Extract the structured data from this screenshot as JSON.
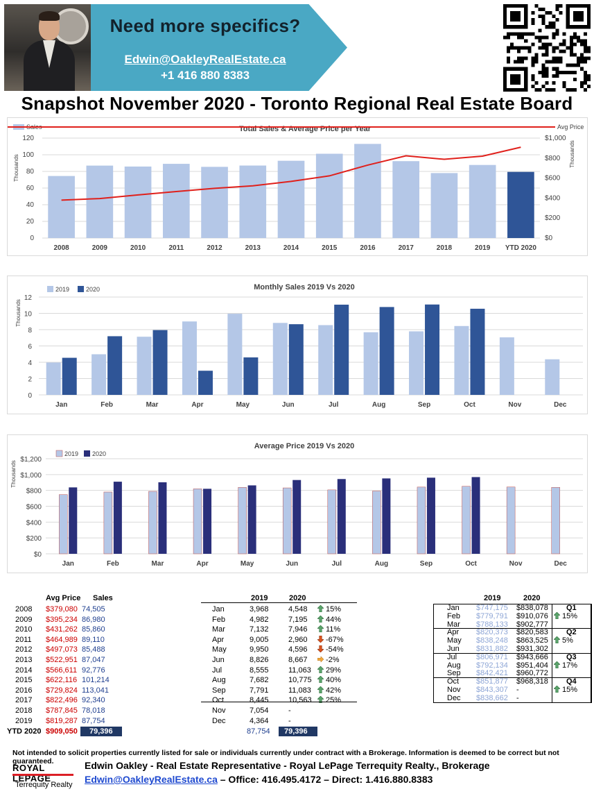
{
  "banner": {
    "headline": "Need more specifics?",
    "email": "Edwin@OakleyRealEstate.ca",
    "phone": "+1 416 880 8383"
  },
  "title": "Snapshot November 2020 - Toronto Regional Real Estate Board",
  "colors": {
    "light_bar": "#b4c7e7",
    "dark_bar": "#2f5597",
    "price_line": "#e0201b",
    "price2020_bar": "#2a2f7a",
    "price2019_bar": "#b4c7e7",
    "red_text": "#cc0000",
    "blue_text": "#1f3f8f"
  },
  "chart_data": [
    {
      "type": "bar+line",
      "title": "Total Sales & Average Price per Year",
      "categories": [
        "2008",
        "2009",
        "2010",
        "2011",
        "2012",
        "2013",
        "2014",
        "2015",
        "2016",
        "2017",
        "2018",
        "2019",
        "YTD 2020"
      ],
      "series": [
        {
          "name": "Sales",
          "axis": "left",
          "values": [
            74.505,
            86.98,
            85.86,
            89.11,
            85.488,
            87.047,
            92.776,
            101.214,
            113.041,
            92.34,
            78.018,
            87.754,
            79.396
          ]
        },
        {
          "name": "Avg Price",
          "axis": "right",
          "values": [
            379.08,
            395.234,
            431.262,
            464.989,
            497.073,
            522.951,
            566.611,
            622.116,
            729.824,
            822.496,
            787.845,
            819.287,
            909.05
          ]
        }
      ],
      "left_axis": {
        "label": "Thousands",
        "ticks": [
          "0",
          "20",
          "40",
          "60",
          "80",
          "100",
          "120"
        ],
        "ylim": [
          0,
          120
        ]
      },
      "right_axis": {
        "label": "Thousands",
        "ticks": [
          "$0",
          "$200",
          "$400",
          "$600",
          "$800",
          "$1,000"
        ],
        "ylim": [
          0,
          1000
        ]
      },
      "legend_left": "Sales",
      "legend_right": "Avg Price"
    },
    {
      "type": "bar",
      "title": "Monthly Sales 2019 Vs 2020",
      "categories": [
        "Jan",
        "Feb",
        "Mar",
        "Apr",
        "May",
        "Jun",
        "Jul",
        "Aug",
        "Sep",
        "Oct",
        "Nov",
        "Dec"
      ],
      "series": [
        {
          "name": "2019",
          "values": [
            3.968,
            4.982,
            7.132,
            9.005,
            9.95,
            8.826,
            8.555,
            7.682,
            7.791,
            8.445,
            7.054,
            4.364
          ]
        },
        {
          "name": "2020",
          "values": [
            4.548,
            7.195,
            7.946,
            2.96,
            4.596,
            8.667,
            11.063,
            10.775,
            11.083,
            10.563,
            null,
            null
          ]
        }
      ],
      "ylabel": "Thousands",
      "ticks": [
        "0",
        "2",
        "4",
        "6",
        "8",
        "10",
        "12"
      ],
      "ylim": [
        0,
        12
      ]
    },
    {
      "type": "bar",
      "title": "Average Price 2019 Vs 2020",
      "categories": [
        "Jan",
        "Feb",
        "Mar",
        "Apr",
        "May",
        "Jun",
        "Jul",
        "Aug",
        "Sep",
        "Oct",
        "Nov",
        "Dec"
      ],
      "series": [
        {
          "name": "2019",
          "values": [
            747.175,
            779.791,
            788.133,
            820.373,
            838.248,
            831.882,
            806.971,
            792.134,
            842.421,
            851.877,
            843.307,
            838.662
          ]
        },
        {
          "name": "2020",
          "values": [
            838.078,
            910.076,
            902.777,
            820.583,
            863.525,
            931.302,
            943.666,
            951.404,
            960.772,
            968.318,
            null,
            null
          ]
        }
      ],
      "ylabel": "Thousands",
      "ticks": [
        "$0",
        "$200",
        "$400",
        "$600",
        "$800",
        "$1,000",
        "$1,200"
      ],
      "ylim": [
        0,
        1200
      ]
    }
  ],
  "annual_table": {
    "headers": [
      "Avg Price",
      "Sales"
    ],
    "rows": [
      {
        "year": "2008",
        "price": "$379,080",
        "sales": "74,505"
      },
      {
        "year": "2009",
        "price": "$395,234",
        "sales": "86,980"
      },
      {
        "year": "2010",
        "price": "$431,262",
        "sales": "85,860"
      },
      {
        "year": "2011",
        "price": "$464,989",
        "sales": "89,110"
      },
      {
        "year": "2012",
        "price": "$497,073",
        "sales": "85,488"
      },
      {
        "year": "2013",
        "price": "$522,951",
        "sales": "87,047"
      },
      {
        "year": "2014",
        "price": "$566,611",
        "sales": "92,776"
      },
      {
        "year": "2015",
        "price": "$622,116",
        "sales": "101,214"
      },
      {
        "year": "2016",
        "price": "$729,824",
        "sales": "113,041"
      },
      {
        "year": "2017",
        "price": "$822,496",
        "sales": "92,340"
      },
      {
        "year": "2018",
        "price": "$787,845",
        "sales": "78,018"
      },
      {
        "year": "2019",
        "price": "$819,287",
        "sales": "87,754"
      }
    ],
    "ytd": {
      "label": "YTD 2020",
      "price": "$909,050",
      "sales": "79,396"
    }
  },
  "monthly_sales_table": {
    "headers": [
      "2019",
      "2020"
    ],
    "rows": [
      {
        "month": "Jan",
        "y2019": "3,968",
        "y2020": "4,548",
        "dir": "up",
        "pct": "15%"
      },
      {
        "month": "Feb",
        "y2019": "4,982",
        "y2020": "7,195",
        "dir": "up",
        "pct": "44%"
      },
      {
        "month": "Mar",
        "y2019": "7,132",
        "y2020": "7,946",
        "dir": "up",
        "pct": "11%"
      },
      {
        "month": "Apr",
        "y2019": "9,005",
        "y2020": "2,960",
        "dir": "down",
        "pct": "-67%"
      },
      {
        "month": "May",
        "y2019": "9,950",
        "y2020": "4,596",
        "dir": "down",
        "pct": "-54%"
      },
      {
        "month": "Jun",
        "y2019": "8,826",
        "y2020": "8,667",
        "dir": "flat",
        "pct": "-2%"
      },
      {
        "month": "Jul",
        "y2019": "8,555",
        "y2020": "11,063",
        "dir": "up",
        "pct": "29%"
      },
      {
        "month": "Aug",
        "y2019": "7,682",
        "y2020": "10,775",
        "dir": "up",
        "pct": "40%"
      },
      {
        "month": "Sep",
        "y2019": "7,791",
        "y2020": "11,083",
        "dir": "up",
        "pct": "42%"
      },
      {
        "month": "Oct",
        "y2019": "8,445",
        "y2020": "10,563",
        "dir": "up",
        "pct": "25%"
      },
      {
        "month": "Nov",
        "y2019": "7,054",
        "y2020": "-",
        "dir": "",
        "pct": ""
      },
      {
        "month": "Dec",
        "y2019": "4,364",
        "y2020": "-",
        "dir": "",
        "pct": ""
      }
    ],
    "totals": {
      "y2019": "87,754",
      "y2020": "79,396"
    }
  },
  "monthly_price_table": {
    "headers": [
      "2019",
      "2020"
    ],
    "rows": [
      {
        "month": "Jan",
        "y2019": "$747,175",
        "y2020": "$838,078"
      },
      {
        "month": "Feb",
        "y2019": "$779,791",
        "y2020": "$910,076"
      },
      {
        "month": "Mar",
        "y2019": "$788,133",
        "y2020": "$902,777"
      },
      {
        "month": "Apr",
        "y2019": "$820,373",
        "y2020": "$820,583"
      },
      {
        "month": "May",
        "y2019": "$838,248",
        "y2020": "$863,525"
      },
      {
        "month": "Jun",
        "y2019": "$831,882",
        "y2020": "$931,302"
      },
      {
        "month": "Jul",
        "y2019": "$806,971",
        "y2020": "$943,666"
      },
      {
        "month": "Aug",
        "y2019": "$792,134",
        "y2020": "$951,404"
      },
      {
        "month": "Sep",
        "y2019": "$842,421",
        "y2020": "$960,772"
      },
      {
        "month": "Oct",
        "y2019": "$851,877",
        "y2020": "$968,318"
      },
      {
        "month": "Nov",
        "y2019": "$843,307",
        "y2020": "-"
      },
      {
        "month": "Dec",
        "y2019": "$838,662",
        "y2020": "-"
      }
    ],
    "quarters": [
      {
        "label": "Q1",
        "pct": "15%",
        "dir": "up"
      },
      {
        "label": "Q2",
        "pct": "5%",
        "dir": "up"
      },
      {
        "label": "Q3",
        "pct": "17%",
        "dir": "up"
      },
      {
        "label": "Q4",
        "pct": "15%",
        "dir": "up"
      }
    ]
  },
  "footer": {
    "disclaimer": "Not intended to solicit properties currently listed for sale or individuals currently under contract with a Brokerage. Information is deemed to be correct but not guaranteed.",
    "logo_text": "ROYAL LEPAGE",
    "logo_sub": "Terrequity Realty",
    "agent": "Edwin Oakley - Real Estate Representative - Royal LePage Terrequity Realty., Brokerage",
    "email": "Edwin@OakleyRealEstate.ca",
    "phones": " – Office: 416.495.4172 – Direct: 1.416.880.8383"
  }
}
